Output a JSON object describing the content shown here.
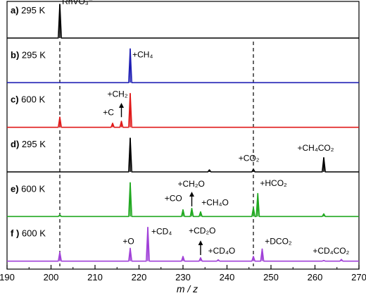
{
  "chart_data": {
    "type": "line",
    "xlabel": "m / z",
    "xlim": [
      190,
      270
    ],
    "xticks": [
      190,
      200,
      210,
      220,
      230,
      240,
      250,
      260,
      270
    ],
    "dashed_reference_lines": [
      202,
      246
    ],
    "panels": [
      {
        "label_letter": "a)",
        "label_temp": "295 K",
        "color": "#000000",
        "peaks": [
          {
            "x": 202,
            "y": 1.0
          }
        ],
        "annotations": [
          {
            "text": "RhVO₃⁻",
            "x": 202.5,
            "y": 1.0
          }
        ]
      },
      {
        "label_letter": "b)",
        "label_temp": "295 K",
        "color": "#1f1fb4",
        "peaks": [
          {
            "x": 218,
            "y": 1.0
          }
        ],
        "annotations": [
          {
            "text": "+CH₄",
            "x": 218.5,
            "y": 0.75
          }
        ]
      },
      {
        "label_letter": "c)",
        "label_temp": "600 K",
        "color": "#e01a1a",
        "peaks": [
          {
            "x": 202,
            "y": 0.3
          },
          {
            "x": 214,
            "y": 0.12
          },
          {
            "x": 216,
            "y": 0.18
          },
          {
            "x": 218,
            "y": 1.0
          }
        ],
        "annotations": [
          {
            "text": "+CH₂",
            "x": 212.8,
            "y": 0.9
          },
          {
            "text": "+C",
            "x": 211.8,
            "y": 0.36
          }
        ],
        "arrows": [
          {
            "x": 216,
            "y_from": 0.3,
            "y_to": 0.65
          }
        ]
      },
      {
        "label_letter": "d)",
        "label_temp": "295 K",
        "color": "#000000",
        "peaks": [
          {
            "x": 218,
            "y": 1.0
          },
          {
            "x": 236,
            "y": 0.06
          },
          {
            "x": 246,
            "y": 0.08
          },
          {
            "x": 262,
            "y": 0.42
          }
        ],
        "annotations": [
          {
            "text": "+CO₂",
            "x": 242.6,
            "y": 0.32
          },
          {
            "text": "+CH₄CO₂",
            "x": 256,
            "y": 0.62
          }
        ]
      },
      {
        "label_letter": "e)",
        "label_temp": "600 K",
        "color": "#21a821",
        "peaks": [
          {
            "x": 202,
            "y": 0.05
          },
          {
            "x": 218,
            "y": 1.0
          },
          {
            "x": 230,
            "y": 0.2
          },
          {
            "x": 232,
            "y": 0.24
          },
          {
            "x": 234,
            "y": 0.14
          },
          {
            "x": 246,
            "y": 0.26
          },
          {
            "x": 247,
            "y": 0.68
          },
          {
            "x": 262,
            "y": 0.08
          }
        ],
        "annotations": [
          {
            "text": "+CH₂O",
            "x": 228.8,
            "y": 0.88
          },
          {
            "text": "+CO",
            "x": 225.8,
            "y": 0.45
          },
          {
            "text": "+CH₄O",
            "x": 234.2,
            "y": 0.33
          },
          {
            "text": "+HCO₂",
            "x": 247.5,
            "y": 0.9
          }
        ],
        "arrows": [
          {
            "x": 232,
            "y_from": 0.3,
            "y_to": 0.66
          }
        ]
      },
      {
        "label_letter": "f )",
        "label_temp": "600 K",
        "color": "#a040d8",
        "peaks": [
          {
            "x": 202,
            "y": 0.26
          },
          {
            "x": 218,
            "y": 0.38
          },
          {
            "x": 222,
            "y": 1.0
          },
          {
            "x": 230,
            "y": 0.14
          },
          {
            "x": 234,
            "y": 0.1
          },
          {
            "x": 238,
            "y": 0.04
          },
          {
            "x": 246,
            "y": 0.14
          },
          {
            "x": 248,
            "y": 0.36
          },
          {
            "x": 262,
            "y": 0.02
          },
          {
            "x": 266,
            "y": 0.05
          }
        ],
        "annotations": [
          {
            "text": "+O",
            "x": 216.3,
            "y": 0.5
          },
          {
            "text": "+CD₄",
            "x": 222.8,
            "y": 0.8
          },
          {
            "text": "+CD₂O",
            "x": 231.3,
            "y": 0.82
          },
          {
            "text": "+CD₄O",
            "x": 235.7,
            "y": 0.22
          },
          {
            "text": "+DCO₂",
            "x": 248.6,
            "y": 0.5
          },
          {
            "text": "+CD₄CO₂",
            "x": 259.5,
            "y": 0.22
          }
        ],
        "arrows": [
          {
            "x": 234,
            "y_from": 0.18,
            "y_to": 0.54
          }
        ]
      }
    ]
  }
}
